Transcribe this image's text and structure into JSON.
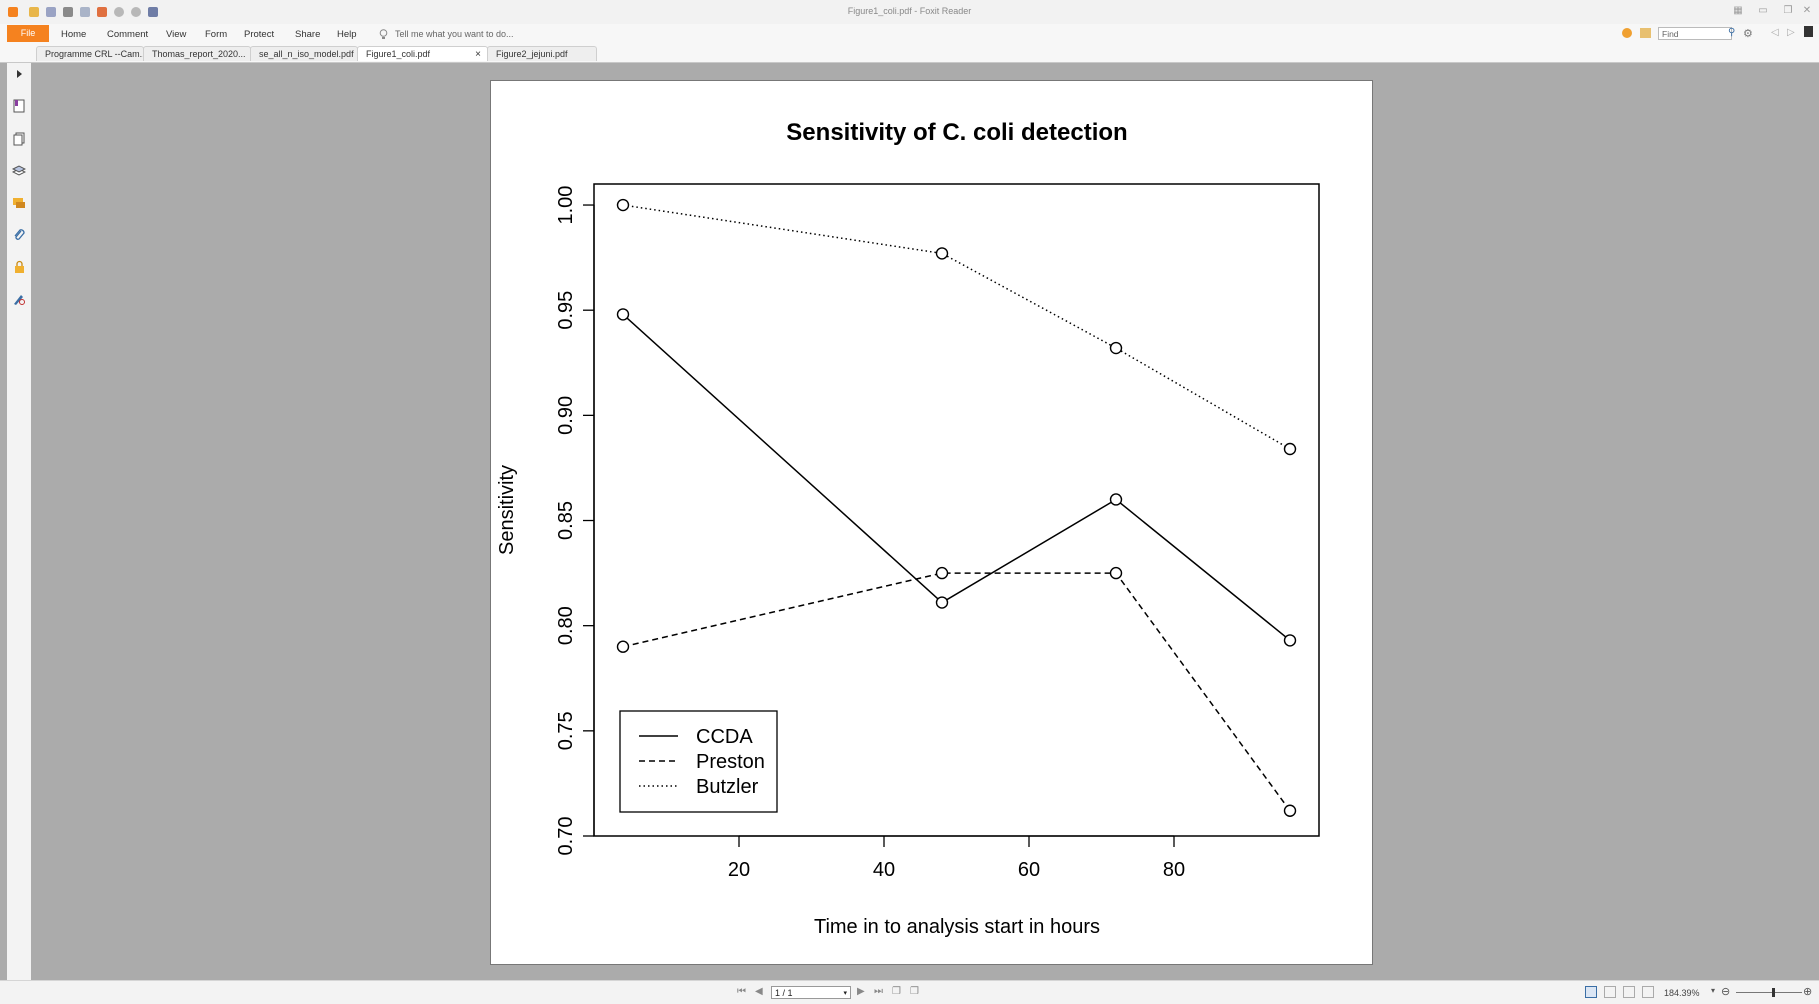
{
  "window": {
    "title": "Figure1_coli.pdf - Foxit Reader"
  },
  "ribbon": {
    "file": "File",
    "menus": [
      "Home",
      "Comment",
      "View",
      "Form",
      "Protect",
      "Share",
      "Help"
    ],
    "tell_me": "Tell me what you want to do...",
    "find_placeholder": "Find"
  },
  "tabs": [
    {
      "label": "Programme CRL --Cam...",
      "active": false
    },
    {
      "label": "Thomas_report_2020...",
      "active": false
    },
    {
      "label": "se_all_n_iso_model.pdf",
      "active": false
    },
    {
      "label": "Figure1_coli.pdf",
      "active": true
    },
    {
      "label": "Figure2_jejuni.pdf",
      "active": false
    }
  ],
  "tab_close": "×",
  "statusbar": {
    "page_value": "1 / 1",
    "zoom": "184.39%"
  },
  "icons": {
    "sidebar": [
      "expand-arrow-icon",
      "bookmark-icon",
      "pages-icon",
      "layers-icon",
      "comments-icon",
      "attachment-icon",
      "security-icon",
      "signature-icon"
    ]
  },
  "chart_data": {
    "type": "line",
    "title": "Sensitivity of C. coli detection",
    "xlabel": "Time in to analysis start in hours",
    "ylabel": "Sensitivity",
    "x": [
      4,
      48,
      72,
      96
    ],
    "xlim": [
      0,
      100
    ],
    "ylim": [
      0.7,
      1.01
    ],
    "x_ticks": [
      20,
      40,
      60,
      80
    ],
    "y_ticks": [
      "0.70",
      "0.75",
      "0.80",
      "0.85",
      "0.90",
      "0.95",
      "1.00"
    ],
    "series": [
      {
        "name": "CCDA",
        "values": [
          0.948,
          0.811,
          0.86,
          0.793
        ],
        "dash": "solid"
      },
      {
        "name": "Preston",
        "values": [
          0.79,
          0.825,
          0.825,
          0.712
        ],
        "dash": "dashed"
      },
      {
        "name": "Butzler",
        "values": [
          1.0,
          0.977,
          0.932,
          0.884
        ],
        "dash": "dotted"
      }
    ],
    "legend_position": "bottom-left",
    "grid": false
  }
}
